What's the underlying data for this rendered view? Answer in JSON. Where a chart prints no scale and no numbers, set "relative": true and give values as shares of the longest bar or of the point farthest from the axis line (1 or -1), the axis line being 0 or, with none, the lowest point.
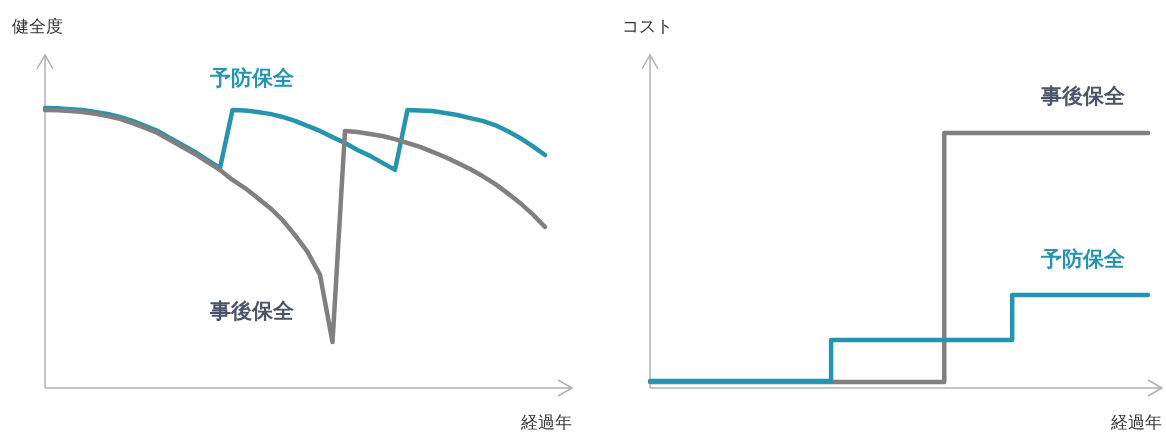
{
  "chart_data": [
    {
      "type": "line",
      "ylabel": "健全度",
      "xlabel": "経過年",
      "relative": true,
      "marker": "none",
      "categories": [
        null,
        null,
        null,
        null,
        null,
        null,
        null,
        null,
        null,
        null,
        null,
        null,
        null,
        null,
        null,
        null,
        null,
        null,
        null,
        null,
        null,
        null,
        null,
        null,
        null,
        null,
        null,
        null,
        null,
        null,
        null,
        null,
        null,
        null,
        null,
        null,
        null,
        null,
        null,
        null,
        null
      ],
      "series": [
        {
          "name": "予防保全",
          "color": "#2594ae",
          "values": [
            1.0,
            0.999,
            0.996,
            0.993,
            0.986,
            0.979,
            0.968,
            0.954,
            0.936,
            0.918,
            0.893,
            0.868,
            0.843,
            0.814,
            0.786,
            0.993,
            0.991,
            0.986,
            0.979,
            0.968,
            0.954,
            0.936,
            0.918,
            0.896,
            0.875,
            0.85,
            0.829,
            0.804,
            0.779,
            0.993,
            0.991,
            0.989,
            0.982,
            0.975,
            0.964,
            0.954,
            0.939,
            0.918,
            0.893,
            0.864,
            0.832
          ]
        },
        {
          "name": "事後保全",
          "color": "#808080",
          "values": [
            0.993,
            0.992,
            0.989,
            0.986,
            0.979,
            0.971,
            0.961,
            0.946,
            0.929,
            0.911,
            0.886,
            0.861,
            0.836,
            0.807,
            0.779,
            0.743,
            0.714,
            0.679,
            0.643,
            0.6,
            0.546,
            0.486,
            0.404,
            0.164,
            0.918,
            0.914,
            0.907,
            0.9,
            0.889,
            0.875,
            0.861,
            0.843,
            0.825,
            0.804,
            0.782,
            0.757,
            0.729,
            0.696,
            0.661,
            0.621,
            0.575
          ]
        }
      ]
    },
    {
      "type": "step",
      "ylabel": "コスト",
      "xlabel": "経過年",
      "relative": true,
      "marker": "none",
      "categories": [
        null,
        null,
        null,
        null,
        null,
        null,
        null,
        null,
        null,
        null,
        null,
        null,
        null,
        null,
        null,
        null,
        null,
        null,
        null,
        null,
        null,
        null,
        null
      ],
      "series": [
        {
          "name": "事後保全",
          "color": "#808080",
          "values": [
            0.024,
            0.024,
            0.024,
            0.024,
            0.024,
            0.024,
            0.024,
            0.024,
            0.024,
            0.024,
            0.024,
            0.024,
            0.024,
            1,
            1,
            1,
            1,
            1,
            1,
            1,
            1,
            1,
            1
          ]
        },
        {
          "name": "予防保全",
          "color": "#2594ae",
          "values": [
            0.027,
            0.027,
            0.027,
            0.027,
            0.027,
            0.027,
            0.027,
            0.027,
            0.188,
            0.188,
            0.188,
            0.188,
            0.188,
            0.188,
            0.188,
            0.188,
            0.365,
            0.365,
            0.365,
            0.365,
            0.365,
            0.365,
            0.365
          ]
        }
      ]
    }
  ]
}
